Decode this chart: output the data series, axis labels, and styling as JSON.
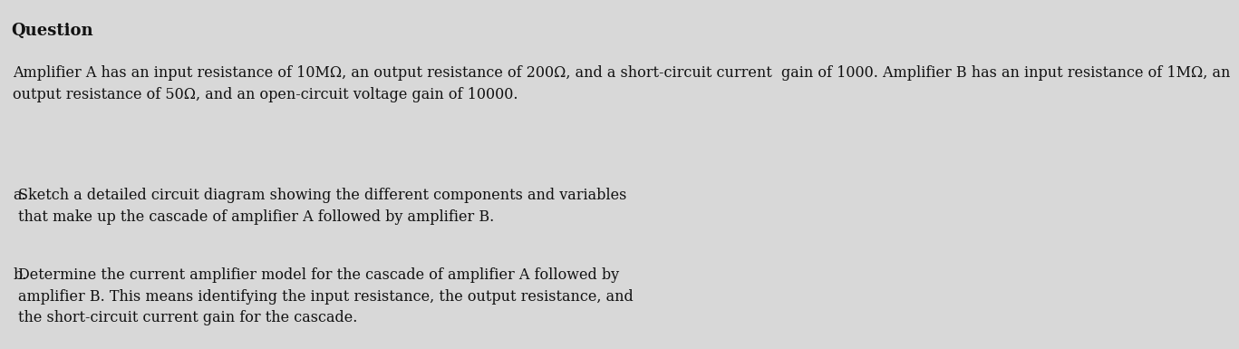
{
  "background_color": "#d8d8d8",
  "title": "Question",
  "title_fontsize": 13,
  "title_bold": true,
  "paragraph": "Amplifier A has an input resistance of 10MΩ, an output resistance of 200Ω, and a short-circuit current  gain of 1000. Amplifier B has an input resistance of 1MΩ, an\noutput resistance of 50Ω, and an open-circuit voltage gain of 10000.",
  "item_a_label": "a.",
  "item_a_text": "Sketch a detailed circuit diagram showing the different components and variables\nthat make up the cascade of amplifier A followed by amplifier B.",
  "item_b_label": "b.",
  "item_b_text": "Determine the current amplifier model for the cascade of amplifier A followed by\namplifier B. This means identifying the input resistance, the output resistance, and\nthe short-circuit current gain for the cascade.",
  "font_family": "serif",
  "text_color": "#111111",
  "fontsize_body": 11.5,
  "fontsize_items": 11.5
}
